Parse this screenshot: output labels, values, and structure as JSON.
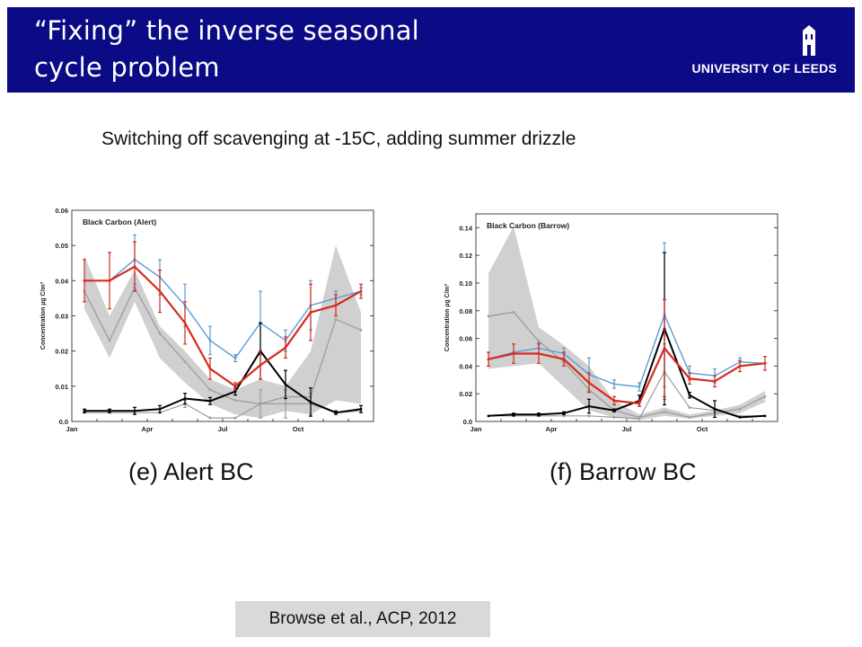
{
  "slide": {
    "title": "“Fixing”  the inverse seasonal\ncycle problem",
    "logo_text": "UNIVERSITY OF LEEDS",
    "subtitle": "Switching off scavenging at -15C, adding summer drizzle",
    "citation": "Browse et al., ACP, 2012",
    "colors": {
      "header": "#0b0b85",
      "model_red": "#d62a1e",
      "model_blue": "#5b9bd5",
      "model_black": "#000000",
      "model_grey": "#9a9aa8",
      "obs_band": "#d0d0d0"
    }
  },
  "chart_data": [
    {
      "type": "line",
      "caption": "(e) Alert BC",
      "title": "Black Carbon (Alert)",
      "xlabel": "",
      "ylabel": "Concentration µg C/m³",
      "x_ticks": [
        "Jan",
        "Apr",
        "Jul",
        "Oct"
      ],
      "x": [
        1,
        2,
        3,
        4,
        5,
        6,
        7,
        8,
        9,
        10,
        11,
        12
      ],
      "y_ticks": [
        "0.0",
        "0.01",
        "0.02",
        "0.03",
        "0.04",
        "0.05",
        "0.06"
      ],
      "ylim": [
        0,
        0.06
      ],
      "grid": false,
      "obs_band": {
        "upper": [
          0.047,
          0.03,
          0.043,
          0.027,
          0.02,
          0.012,
          0.009,
          0.012,
          0.01,
          0.02,
          0.05,
          0.031
        ],
        "lower": [
          0.032,
          0.018,
          0.034,
          0.018,
          0.011,
          0.005,
          0.002,
          0.001,
          0.003,
          0.002,
          0.006,
          0.005
        ]
      },
      "series": [
        {
          "color": "#d62a1e",
          "values": [
            0.04,
            0.04,
            0.044,
            0.037,
            0.028,
            0.015,
            0.01,
            0.016,
            0.021,
            0.031,
            0.033,
            0.037
          ],
          "err": [
            0.006,
            0.008,
            0.007,
            0.006,
            0.006,
            0.003,
            0.001,
            0.004,
            0.003,
            0.008,
            0.003,
            0.002
          ]
        },
        {
          "color": "#5b9bd5",
          "values": [
            0.04,
            0.04,
            0.046,
            0.041,
            0.033,
            0.023,
            0.018,
            0.028,
            0.023,
            0.033,
            0.035,
            0.037
          ],
          "err": [
            0.0,
            0.0,
            0.007,
            0.005,
            0.006,
            0.004,
            0.001,
            0.009,
            0.003,
            0.007,
            0.002,
            0.001
          ]
        },
        {
          "color": "#000000",
          "values": [
            0.003,
            0.003,
            0.003,
            0.0035,
            0.0065,
            0.0058,
            0.0085,
            0.02,
            0.0105,
            0.0055,
            0.0025,
            0.0035
          ],
          "err": [
            0.0005,
            0.0005,
            0.001,
            0.001,
            0.0015,
            0.001,
            0.001,
            0.008,
            0.004,
            0.004,
            0.0005,
            0.001
          ]
        },
        {
          "color": "#9a9aa8",
          "values": [
            0.0025,
            0.0025,
            0.0025,
            0.0025,
            0.005,
            0.001,
            0.001,
            0.005,
            0.005,
            0.005,
            0.0025,
            0.003
          ],
          "err": [
            0,
            0,
            0,
            0,
            0.001,
            0,
            0,
            0.004,
            0.004,
            0.003,
            0,
            0
          ]
        },
        {
          "color": "#a0a0a0",
          "values": [
            0.037,
            0.023,
            0.038,
            0.025,
            0.017,
            0.009,
            0.006,
            0.005,
            0.007,
            0.007,
            0.029,
            0.026
          ],
          "err": [
            0,
            0,
            0,
            0,
            0,
            0,
            0,
            0,
            0,
            0,
            0,
            0
          ]
        }
      ]
    },
    {
      "type": "line",
      "caption": "(f) Barrow BC",
      "title": "Black Carbon (Barrow)",
      "xlabel": "",
      "ylabel": "Concentration µg C/m³",
      "x_ticks": [
        "Jan",
        "Apr",
        "Jul",
        "Oct"
      ],
      "x": [
        1,
        2,
        3,
        4,
        5,
        6,
        7,
        8,
        9,
        10,
        11,
        12
      ],
      "y_ticks": [
        "0.0",
        "0.02",
        "0.04",
        "0.06",
        "0.08",
        "0.10",
        "0.12",
        "0.14"
      ],
      "ylim": [
        0,
        0.15
      ],
      "grid": false,
      "obs_band": {
        "upper": [
          0.107,
          0.141,
          0.068,
          0.055,
          0.04,
          0.015,
          0.005,
          0.01,
          0.005,
          0.008,
          0.012,
          0.022
        ],
        "lower": [
          0.038,
          0.04,
          0.042,
          0.025,
          0.008,
          0.003,
          0.001,
          0.004,
          0.002,
          0.004,
          0.006,
          0.014
        ]
      },
      "series": [
        {
          "color": "#d62a1e",
          "values": [
            0.045,
            0.049,
            0.049,
            0.045,
            0.028,
            0.015,
            0.013,
            0.053,
            0.031,
            0.029,
            0.04,
            0.042
          ],
          "err": [
            0.005,
            0.007,
            0.007,
            0.005,
            0.007,
            0.003,
            0.002,
            0.035,
            0.004,
            0.004,
            0.004,
            0.005
          ]
        },
        {
          "color": "#5b9bd5",
          "values": [
            0.045,
            0.05,
            0.053,
            0.049,
            0.034,
            0.027,
            0.025,
            0.077,
            0.035,
            0.033,
            0.043,
            0.042
          ],
          "err": [
            0.0,
            0.0,
            0.004,
            0.004,
            0.012,
            0.003,
            0.003,
            0.052,
            0.005,
            0.005,
            0.003,
            0.0
          ]
        },
        {
          "color": "#000000",
          "values": [
            0.004,
            0.005,
            0.005,
            0.006,
            0.011,
            0.008,
            0.015,
            0.067,
            0.019,
            0.009,
            0.003,
            0.004
          ],
          "err": [
            0,
            0.001,
            0.001,
            0.001,
            0.005,
            0.001,
            0.004,
            0.055,
            0.002,
            0.006,
            0,
            0
          ]
        },
        {
          "color": "#9a9aa8",
          "values": [
            0.004,
            0.004,
            0.004,
            0.004,
            0.004,
            0.003,
            0.002,
            0.036,
            0.01,
            0.008,
            0.004,
            0.004
          ],
          "err": [
            0,
            0,
            0,
            0,
            0,
            0,
            0,
            0.02,
            0,
            0,
            0,
            0
          ]
        },
        {
          "color": "#a0a0a0",
          "values": [
            0.076,
            0.079,
            0.058,
            0.043,
            0.023,
            0.008,
            0.003,
            0.007,
            0.003,
            0.006,
            0.009,
            0.018
          ],
          "err": [
            0,
            0,
            0,
            0,
            0,
            0,
            0,
            0,
            0,
            0,
            0,
            0
          ]
        }
      ]
    }
  ]
}
